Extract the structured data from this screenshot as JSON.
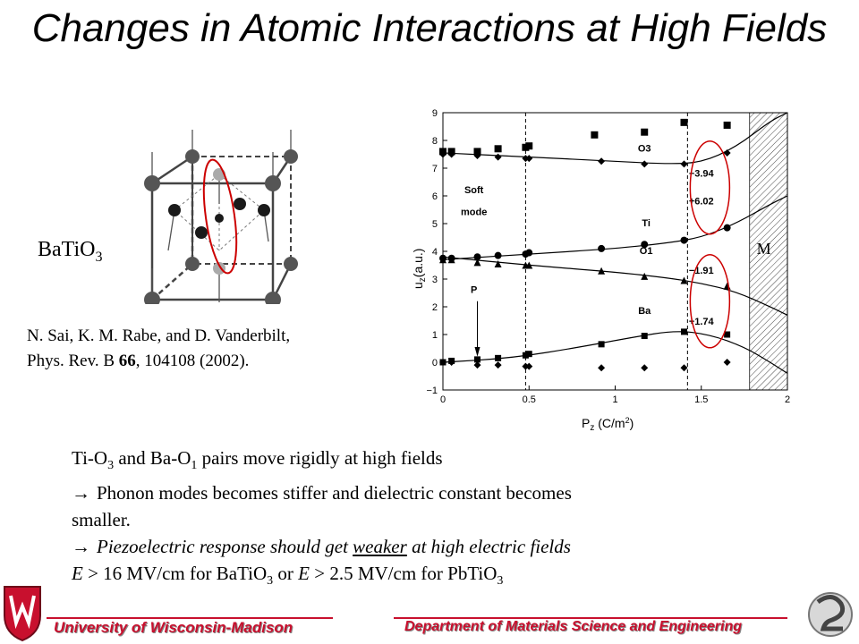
{
  "slide": {
    "title": "Changes in Atomic Interactions at High Fields",
    "compound": {
      "base": "BaTiO",
      "sub": "3"
    },
    "citation": {
      "line1": "N. Sai, K. M. Rabe, and D. Vanderbilt,",
      "line2_pre": "Phys. Rev. B ",
      "line2_bold": "66",
      "line2_post": ", 104108 (2002)."
    },
    "body": {
      "l1_a": "Ti-O",
      "l1_sub1": "3",
      "l1_b": " and Ba-O",
      "l1_sub2": "1",
      "l1_c": " pairs move rigidly at high fields",
      "l2": "Phonon modes becomes stiffer and dielectric constant becomes",
      "l3": "smaller.",
      "l4_pre": "Piezoelectric response should get ",
      "l4_ul": "weaker",
      "l4_post": " at high electric fields",
      "l5_e1": "E",
      "l5_a": "  > 16 MV/cm for BaTiO",
      "l5_sub1": "3",
      "l5_b": " or  ",
      "l5_e2": "E",
      "l5_c": "  > 2.5 MV/cm  for PbTiO",
      "l5_sub2": "3"
    },
    "footer": {
      "university": "University  of Wisconsin-Madison",
      "department": "Department of Materials Science and Engineering"
    }
  },
  "chart_data": {
    "type": "line",
    "xlabel": "P",
    "xlabel_sub": "z",
    "xlabel_units": " (C/m",
    "xlabel_units_sup": "2",
    "xlabel_units_end": ")",
    "ylabel": "u",
    "ylabel_sub": "z",
    "ylabel_units": "(a.u.)",
    "xlim": [
      0,
      2
    ],
    "ylim": [
      -1,
      9
    ],
    "x_ticks": [
      "0",
      "0.5",
      "1",
      "1.5",
      "2"
    ],
    "y_ticks": [
      "−1",
      "0",
      "1",
      "2",
      "3",
      "4",
      "5",
      "6",
      "7",
      "8",
      "9"
    ],
    "vlines": [
      0.48,
      1.42
    ],
    "metallic_region": {
      "x_start": 1.78,
      "label": "M"
    },
    "annotations": [
      {
        "text": "O3",
        "x": 1.17,
        "y": 7.6
      },
      {
        "text": "Ti",
        "x": 1.18,
        "y": 4.9
      },
      {
        "text": "O1",
        "x": 1.18,
        "y": 3.9
      },
      {
        "text": "Ba",
        "x": 1.17,
        "y": 1.75
      },
      {
        "text": "Soft",
        "x": 0.18,
        "y": 6.1
      },
      {
        "text": "mode",
        "x": 0.18,
        "y": 5.3
      },
      {
        "text": "−3.94",
        "x": 1.5,
        "y": 6.7
      },
      {
        "text": "+6.02",
        "x": 1.5,
        "y": 5.7
      },
      {
        "text": "−1.91",
        "x": 1.5,
        "y": 3.2
      },
      {
        "text": "+1.74",
        "x": 1.5,
        "y": 1.35
      },
      {
        "text": "P",
        "x": 0.18,
        "y": 2.5
      }
    ],
    "series": [
      {
        "marker": "diamond",
        "x": [
          0.0,
          0.05,
          0.2,
          0.32,
          0.48,
          0.5,
          0.92,
          1.17,
          1.4,
          1.65
        ],
        "y": [
          7.5,
          7.5,
          7.45,
          7.4,
          7.35,
          7.35,
          7.25,
          7.15,
          7.15,
          7.55
        ],
        "curve": [
          [
            0,
            7.55
          ],
          [
            0.5,
            7.4
          ],
          [
            1.0,
            7.25
          ],
          [
            1.3,
            7.15
          ],
          [
            1.5,
            7.2
          ],
          [
            1.7,
            7.75
          ],
          [
            1.9,
            8.7
          ],
          [
            2.0,
            9.0
          ]
        ]
      },
      {
        "marker": "circle",
        "x": [
          0.0,
          0.05,
          0.2,
          0.32,
          0.48,
          0.5,
          0.92,
          1.17,
          1.4,
          1.65
        ],
        "y": [
          3.75,
          3.75,
          3.8,
          3.85,
          3.9,
          3.95,
          4.1,
          4.25,
          4.4,
          4.85
        ],
        "curve": [
          [
            0,
            3.7
          ],
          [
            0.5,
            3.9
          ],
          [
            1.0,
            4.1
          ],
          [
            1.3,
            4.3
          ],
          [
            1.5,
            4.5
          ],
          [
            1.7,
            5.0
          ],
          [
            1.9,
            5.7
          ],
          [
            2.0,
            6.0
          ]
        ]
      },
      {
        "marker": "triangle",
        "x": [
          0.0,
          0.05,
          0.2,
          0.32,
          0.48,
          0.5,
          0.92,
          1.17,
          1.4,
          1.65
        ],
        "y": [
          3.7,
          3.7,
          3.6,
          3.55,
          3.5,
          3.5,
          3.3,
          3.1,
          2.95,
          2.75
        ],
        "curve": [
          [
            0,
            3.8
          ],
          [
            0.5,
            3.5
          ],
          [
            1.0,
            3.25
          ],
          [
            1.3,
            3.05
          ],
          [
            1.5,
            2.85
          ],
          [
            1.7,
            2.55
          ],
          [
            1.9,
            2.0
          ],
          [
            2.0,
            1.7
          ]
        ]
      },
      {
        "marker": "circle-open",
        "x": [
          0.0,
          0.05,
          0.2,
          0.32,
          0.48,
          0.5,
          0.92,
          1.17,
          1.4,
          1.65
        ],
        "y": [
          0.0,
          0.05,
          0.1,
          0.15,
          0.25,
          0.3,
          0.65,
          0.95,
          1.1,
          1.0
        ],
        "curve": [
          [
            0,
            0.0
          ],
          [
            0.4,
            0.15
          ],
          [
            0.8,
            0.55
          ],
          [
            1.1,
            0.9
          ],
          [
            1.35,
            1.15
          ],
          [
            1.55,
            1.0
          ],
          [
            1.75,
            0.55
          ],
          [
            1.9,
            0.0
          ],
          [
            2.0,
            -0.4
          ]
        ]
      },
      {
        "marker": "square",
        "x": [
          0.0,
          0.05,
          0.2,
          0.32,
          0.48,
          0.5,
          0.88,
          1.17,
          1.4,
          1.65
        ],
        "y": [
          7.6,
          7.6,
          7.6,
          7.7,
          7.75,
          7.8,
          8.2,
          8.3,
          8.65,
          8.55
        ],
        "curve": []
      },
      {
        "marker": "diamond",
        "x": [
          0.0,
          0.05,
          0.2,
          0.32,
          0.48,
          0.5,
          0.92,
          1.17,
          1.4,
          1.65
        ],
        "y": [
          0.0,
          0.0,
          -0.1,
          -0.1,
          -0.15,
          -0.15,
          -0.2,
          -0.2,
          -0.2,
          0.0
        ],
        "curve": []
      }
    ]
  },
  "colors": {
    "accent": "#c8102e",
    "highlight_ellipse": "#cc0000"
  }
}
